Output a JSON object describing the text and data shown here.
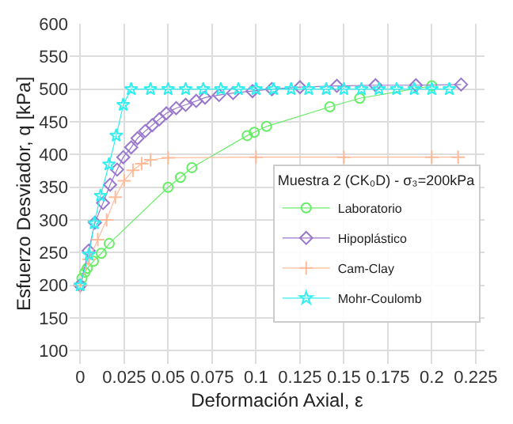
{
  "chart_data": {
    "type": "line",
    "xlabel": "Deformación Axial, ε",
    "ylabel": "Esfuerzo Desviador, q [kPa]",
    "legend_title": "Muestra 2 (CK₀D) - σ₃=200kPa",
    "xlim": [
      -0.006,
      0.23
    ],
    "ylim": [
      80,
      600
    ],
    "xticks": [
      0,
      0.025,
      0.05,
      0.075,
      0.1,
      0.125,
      0.15,
      0.175,
      0.2,
      0.225
    ],
    "yticks": [
      100,
      150,
      200,
      250,
      300,
      350,
      400,
      450,
      500,
      550,
      600
    ],
    "grid": true,
    "legend": "bottom right",
    "series": [
      {
        "name": "Laboratorio",
        "color": "#66ee66",
        "marker": "circle",
        "x": [
          0,
          0.001,
          0.0027,
          0.004,
          0.0075,
          0.012,
          0.0165,
          0.05,
          0.057,
          0.0635,
          0.095,
          0.099,
          0.106,
          0.142,
          0.159,
          0.2
        ],
        "values": [
          200,
          211,
          220,
          226,
          237,
          249,
          264,
          350,
          365,
          380,
          429,
          434,
          443,
          473,
          486,
          505
        ]
      },
      {
        "name": "Hipoplástico",
        "color": "#9977cc",
        "marker": "diamond",
        "x": [
          0,
          0.0048,
          0.0084,
          0.013,
          0.017,
          0.021,
          0.0245,
          0.029,
          0.0326,
          0.037,
          0.041,
          0.045,
          0.049,
          0.0546,
          0.06,
          0.066,
          0.071,
          0.079,
          0.087,
          0.098,
          0.109,
          0.125,
          0.146,
          0.168,
          0.191,
          0.2167
        ],
        "values": [
          200,
          253,
          296,
          326,
          354,
          377,
          396,
          411,
          425,
          436,
          445,
          454,
          463,
          471,
          476,
          482,
          487,
          491,
          494,
          497,
          500,
          503,
          505,
          506,
          506,
          507
        ]
      },
      {
        "name": "Cam-Clay",
        "color": "#ffbb99",
        "marker": "cross",
        "x": [
          0,
          0.005,
          0.01,
          0.015,
          0.02,
          0.025,
          0.03,
          0.035,
          0.04,
          0.05,
          0.1,
          0.15,
          0.2,
          0.215
        ],
        "values": [
          200,
          240,
          270,
          300,
          335,
          360,
          376,
          386,
          392,
          395,
          396,
          396,
          396,
          396
        ]
      },
      {
        "name": "Mohr-Coulomb",
        "color": "#33eeee",
        "marker": "star",
        "x": [
          0,
          0.005,
          0.008,
          0.0116,
          0.0164,
          0.0205,
          0.0245,
          0.029,
          0.04,
          0.05,
          0.06,
          0.07,
          0.08,
          0.09,
          0.1,
          0.11,
          0.12,
          0.13,
          0.14,
          0.15,
          0.16,
          0.17,
          0.18,
          0.19,
          0.2,
          0.21
        ],
        "values": [
          200,
          247,
          295,
          337,
          385,
          429,
          476,
          500,
          500,
          500,
          500,
          500,
          500,
          500,
          500,
          500,
          500,
          500,
          500,
          500,
          500,
          500,
          500,
          500,
          500,
          500
        ]
      }
    ]
  }
}
